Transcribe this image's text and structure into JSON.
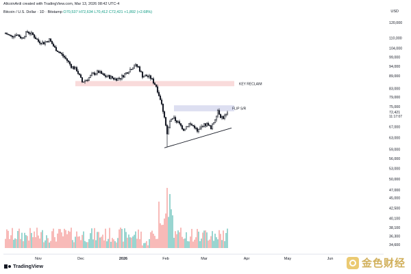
{
  "header": {
    "credit": "AltcoinArdi created with TradingView.com, Mar 13, 2026 08:42 UTC-4",
    "symbol_name": "Bitcoin / U.S. Dollar · 1D · Bitstamp",
    "ohlc_open": "O70,537",
    "ohlc_high": "H72,634",
    "ohlc_low": "L70,412",
    "ohlc_close": "C72,421",
    "change": "+1,892 (+2.68%)",
    "currency": "USD"
  },
  "price_axis": {
    "ticks": [
      "120,000",
      "110,000",
      "104,000",
      "99,000",
      "94,000",
      "89,000",
      "83,000",
      "79,000",
      "75,000",
      "67,000",
      "63,000",
      "59,000",
      "56,000",
      "53,000",
      "50,000",
      "47,000",
      "45,000",
      "42,500",
      "40,100",
      "38,100",
      "36,300",
      "34,600"
    ],
    "last_price": "72,421",
    "countdown": "11:17:07"
  },
  "time_axis": {
    "labels": [
      "Nov",
      "Dec",
      "2026",
      "Feb",
      "Mar",
      "Apr",
      "May",
      "Jun"
    ]
  },
  "annotations": {
    "key_reclaim": "KEY RECLAIM",
    "flip_sr": "FLIP S/R"
  },
  "footer": {
    "brand": "TradingView",
    "watermark": "金色财经"
  },
  "colors": {
    "up": "#26a69a",
    "down": "#ef5350",
    "candle": "#131722",
    "vol_up": "#80cbc4",
    "vol_down": "#f7a9a7",
    "zone_red": "#f8d7d7",
    "zone_blue": "#d9dcef"
  },
  "chart_data": {
    "type": "candlestick",
    "symbol": "Bitcoin / U.S. Dollar",
    "interval": "1D",
    "exchange": "Bitstamp",
    "y_scale": "log",
    "ylim": [
      34600,
      120000
    ],
    "x_start_month": "Oct 2025",
    "price_path": [
      [
        0,
        113000
      ],
      [
        4,
        111000
      ],
      [
        8,
        112500
      ],
      [
        12,
        110000
      ],
      [
        16,
        114000
      ],
      [
        20,
        112000
      ],
      [
        24,
        108000
      ],
      [
        28,
        107000
      ],
      [
        32,
        109000
      ],
      [
        36,
        104000
      ],
      [
        40,
        101000
      ],
      [
        44,
        98000
      ],
      [
        48,
        94000
      ],
      [
        52,
        92000
      ],
      [
        56,
        86000
      ],
      [
        60,
        87500
      ],
      [
        64,
        90000
      ],
      [
        68,
        91000
      ],
      [
        72,
        89000
      ],
      [
        76,
        88500
      ],
      [
        80,
        87500
      ],
      [
        84,
        88000
      ],
      [
        88,
        90500
      ],
      [
        92,
        93000
      ],
      [
        94,
        94500
      ],
      [
        97,
        93500
      ],
      [
        100,
        89000
      ],
      [
        103,
        89000
      ],
      [
        106,
        88000
      ],
      [
        110,
        84000
      ],
      [
        113,
        78000
      ],
      [
        116,
        71000
      ],
      [
        118,
        64000
      ],
      [
        120,
        69000
      ],
      [
        123,
        70000
      ],
      [
        126,
        68500
      ],
      [
        130,
        66000
      ],
      [
        134,
        68000
      ],
      [
        138,
        67000
      ],
      [
        140,
        65000
      ],
      [
        144,
        67500
      ],
      [
        148,
        68000
      ],
      [
        150,
        66000
      ],
      [
        153,
        70000
      ],
      [
        155,
        73500
      ],
      [
        157,
        71000
      ],
      [
        159,
        70500
      ],
      [
        161,
        71500
      ],
      [
        162,
        72421
      ]
    ],
    "volume_note": "daily volume histogram, peak near early Feb",
    "zones": [
      {
        "label": "KEY RECLAIM",
        "from": 84000,
        "to": 86500,
        "color": "red"
      },
      {
        "label": "FLIP S/R",
        "from": 73000,
        "to": 75500,
        "color": "blue"
      }
    ],
    "trendline": {
      "from": [
        118,
        59500
      ],
      "to": [
        162,
        67000
      ]
    },
    "last_close": 72421
  }
}
